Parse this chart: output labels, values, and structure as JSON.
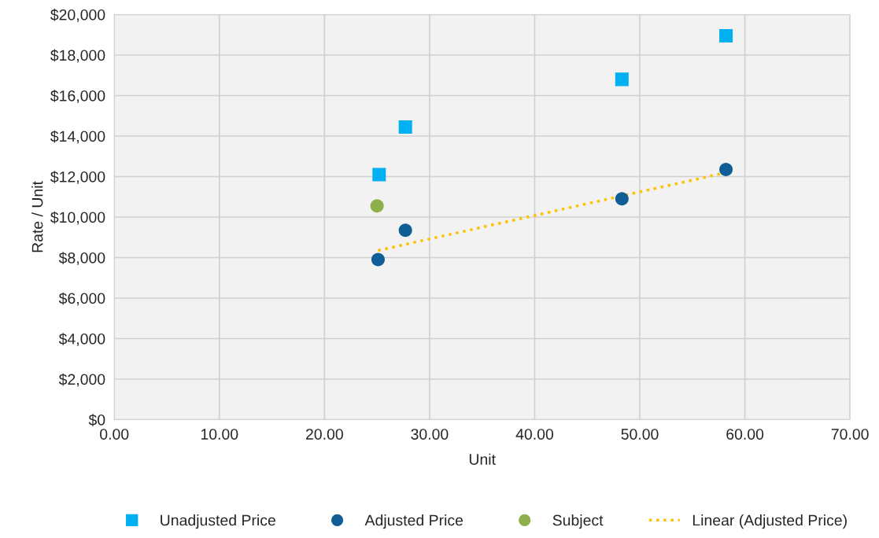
{
  "chart_data": {
    "type": "scatter",
    "xlabel": "Unit",
    "ylabel": "Rate / Unit",
    "xlim": [
      0,
      70
    ],
    "ylim": [
      0,
      20000
    ],
    "xticks": [
      {
        "value": 0,
        "label": "0.00"
      },
      {
        "value": 10,
        "label": "10.00"
      },
      {
        "value": 20,
        "label": "20.00"
      },
      {
        "value": 30,
        "label": "30.00"
      },
      {
        "value": 40,
        "label": "40.00"
      },
      {
        "value": 50,
        "label": "50.00"
      },
      {
        "value": 60,
        "label": "60.00"
      },
      {
        "value": 70,
        "label": "70.00"
      }
    ],
    "yticks": [
      {
        "value": 0,
        "label": "$0"
      },
      {
        "value": 2000,
        "label": "$2,000"
      },
      {
        "value": 4000,
        "label": "$4,000"
      },
      {
        "value": 6000,
        "label": "$6,000"
      },
      {
        "value": 8000,
        "label": "$8,000"
      },
      {
        "value": 10000,
        "label": "$10,000"
      },
      {
        "value": 12000,
        "label": "$12,000"
      },
      {
        "value": 14000,
        "label": "$14,000"
      },
      {
        "value": 16000,
        "label": "$16,000"
      },
      {
        "value": 18000,
        "label": "$18,000"
      },
      {
        "value": 20000,
        "label": "$20,000"
      }
    ],
    "grid": true,
    "legend": "bottom",
    "series": [
      {
        "name": "Unadjusted Price",
        "marker": "square",
        "color": "#00b0f0",
        "x": [
          25.2,
          27.7,
          48.3,
          58.2
        ],
        "values": [
          12100,
          14450,
          16800,
          18950
        ]
      },
      {
        "name": "Adjusted Price",
        "marker": "circle",
        "color": "#0f5e96",
        "x": [
          25.1,
          27.7,
          48.3,
          58.2
        ],
        "values": [
          7900,
          9350,
          10900,
          12350
        ]
      },
      {
        "name": "Subject",
        "marker": "circle",
        "color": "#8db04a",
        "x": [
          25.0
        ],
        "values": [
          10550
        ]
      },
      {
        "name": "Linear (Adjusted Price)",
        "type": "line",
        "marker": "none",
        "line_style": "dotted",
        "color": "#ffc000",
        "x": [
          25.1,
          57.8
        ],
        "values": [
          8350,
          12150
        ]
      }
    ]
  }
}
